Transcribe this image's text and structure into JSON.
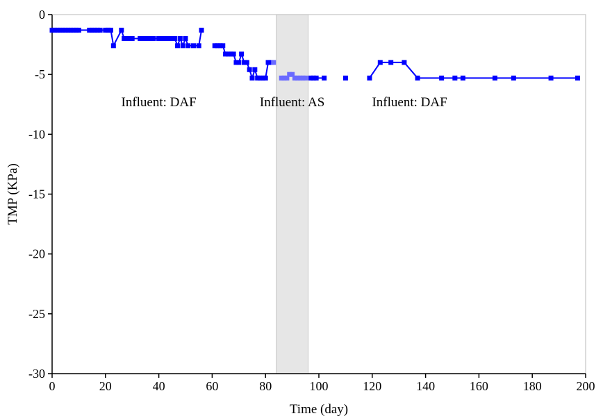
{
  "chart_data": {
    "type": "line",
    "xlabel": "Time (day)",
    "ylabel": "TMP (KPa)",
    "xlim": [
      0,
      200
    ],
    "ylim": [
      -30,
      0
    ],
    "xticks": [
      0,
      20,
      40,
      60,
      80,
      100,
      120,
      140,
      160,
      180,
      200
    ],
    "yticks": [
      0,
      -5,
      -10,
      -15,
      -20,
      -25,
      -30
    ],
    "grid": false,
    "legend": "none",
    "shaded_region": {
      "x_start": 84,
      "x_end": 96,
      "color": "#e6e6e6"
    },
    "annotations": [
      {
        "text": "Influent: DAF",
        "x": 40,
        "y": -8
      },
      {
        "text": "Influent: AS",
        "x": 90,
        "y": -8
      },
      {
        "text": "Influent: DAF",
        "x": 134,
        "y": -8
      }
    ],
    "series": [
      {
        "color": "#0000ff",
        "segments": [
          [
            [
              0,
              -1.3
            ],
            [
              1,
              -1.3
            ],
            [
              2,
              -1.3
            ],
            [
              3,
              -1.3
            ],
            [
              4,
              -1.3
            ],
            [
              5,
              -1.3
            ],
            [
              6,
              -1.3
            ],
            [
              7,
              -1.3
            ],
            [
              8,
              -1.3
            ],
            [
              9,
              -1.3
            ],
            [
              10,
              -1.3
            ],
            [
              14,
              -1.3
            ],
            [
              15,
              -1.3
            ],
            [
              16,
              -1.3
            ],
            [
              17,
              -1.3
            ],
            [
              18,
              -1.3
            ],
            [
              20,
              -1.3
            ],
            [
              21,
              -1.3
            ],
            [
              22,
              -1.3
            ],
            [
              23,
              -2.6
            ],
            [
              26,
              -1.3
            ],
            [
              27,
              -2.0
            ],
            [
              28,
              -2.0
            ],
            [
              29,
              -2.0
            ],
            [
              30,
              -2.0
            ],
            [
              33,
              -2.0
            ],
            [
              34,
              -2.0
            ],
            [
              35,
              -2.0
            ],
            [
              36,
              -2.0
            ],
            [
              37,
              -2.0
            ],
            [
              38,
              -2.0
            ],
            [
              40,
              -2.0
            ],
            [
              41,
              -2.0
            ],
            [
              42,
              -2.0
            ],
            [
              43,
              -2.0
            ],
            [
              44,
              -2.0
            ],
            [
              45,
              -2.0
            ],
            [
              46,
              -2.0
            ],
            [
              47,
              -2.6
            ],
            [
              48,
              -2.0
            ],
            [
              49,
              -2.6
            ],
            [
              50,
              -2.0
            ],
            [
              51,
              -2.6
            ],
            [
              53,
              -2.6
            ],
            [
              55,
              -2.6
            ],
            [
              56,
              -1.3
            ]
          ],
          [
            [
              61,
              -2.6
            ],
            [
              62,
              -2.6
            ],
            [
              63,
              -2.6
            ],
            [
              64,
              -2.6
            ],
            [
              65,
              -3.3
            ],
            [
              66,
              -3.3
            ],
            [
              67,
              -3.3
            ],
            [
              68,
              -3.3
            ],
            [
              69,
              -4.0
            ],
            [
              70,
              -4.0
            ],
            [
              71,
              -3.3
            ],
            [
              72,
              -4.0
            ],
            [
              73,
              -4.0
            ],
            [
              74,
              -4.6
            ],
            [
              75,
              -5.3
            ],
            [
              76,
              -4.6
            ],
            [
              77,
              -5.3
            ],
            [
              78,
              -5.3
            ],
            [
              79,
              -5.3
            ],
            [
              80,
              -5.3
            ],
            [
              81,
              -4.0
            ],
            [
              82,
              -4.0
            ]
          ],
          [
            [
              97,
              -5.3
            ],
            [
              98,
              -5.3
            ],
            [
              99,
              -5.3
            ],
            [
              102,
              -5.3
            ]
          ],
          [
            [
              110,
              -5.3
            ]
          ],
          [
            [
              119,
              -5.3
            ],
            [
              123,
              -4.0
            ],
            [
              127,
              -4.0
            ],
            [
              132,
              -4.0
            ],
            [
              137,
              -5.3
            ],
            [
              146,
              -5.3
            ],
            [
              151,
              -5.3
            ],
            [
              154,
              -5.3
            ],
            [
              166,
              -5.3
            ],
            [
              173,
              -5.3
            ],
            [
              187,
              -5.3
            ],
            [
              197,
              -5.3
            ]
          ]
        ]
      },
      {
        "color": "#6a6aff",
        "segments": [
          [
            [
              83,
              -4.0
            ]
          ],
          [
            [
              86,
              -5.3
            ],
            [
              87,
              -5.3
            ],
            [
              88,
              -5.3
            ],
            [
              89,
              -5.0
            ],
            [
              90,
              -5.0
            ],
            [
              91,
              -5.3
            ],
            [
              92,
              -5.3
            ],
            [
              93,
              -5.3
            ],
            [
              94,
              -5.3
            ],
            [
              95,
              -5.3
            ]
          ]
        ]
      }
    ]
  }
}
